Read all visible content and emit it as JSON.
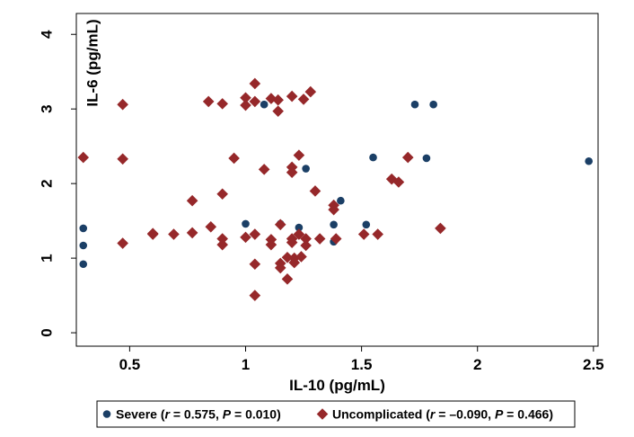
{
  "chart_data": {
    "type": "scatter",
    "title": "",
    "xlabel": "IL-10 (pg/mL)",
    "ylabel": "IL-6 (pg/mL)",
    "xlim": [
      0.27,
      2.52
    ],
    "ylim": [
      -0.18,
      4.28
    ],
    "xticks": [
      0.5,
      1,
      1.5,
      2,
      2.5
    ],
    "yticks": [
      0,
      1,
      2,
      3,
      4
    ],
    "grid": "horizontal",
    "legend_position": "bottom",
    "series": [
      {
        "name": "Severe",
        "stats": {
          "r": "0.575",
          "P": "0.010"
        },
        "color": "#1b3f66",
        "marker": "circle",
        "points": [
          [
            0.3,
            1.4
          ],
          [
            0.3,
            1.17
          ],
          [
            0.3,
            0.92
          ],
          [
            1.0,
            1.46
          ],
          [
            1.08,
            3.06
          ],
          [
            1.15,
            1.46
          ],
          [
            1.23,
            1.41
          ],
          [
            1.26,
            2.2
          ],
          [
            1.38,
            1.45
          ],
          [
            1.38,
            1.22
          ],
          [
            1.41,
            1.77
          ],
          [
            1.52,
            1.45
          ],
          [
            1.55,
            2.35
          ],
          [
            1.73,
            3.06
          ],
          [
            1.78,
            2.34
          ],
          [
            1.81,
            3.06
          ],
          [
            2.48,
            2.3
          ]
        ]
      },
      {
        "name": "Uncomplicated",
        "stats": {
          "r": "–0.090",
          "P": "0.466"
        },
        "color": "#96282a",
        "marker": "diamond",
        "points": [
          [
            0.3,
            2.35
          ],
          [
            0.47,
            3.06
          ],
          [
            0.47,
            2.33
          ],
          [
            0.47,
            1.2
          ],
          [
            0.6,
            1.33
          ],
          [
            0.6,
            1.32
          ],
          [
            0.69,
            1.32
          ],
          [
            0.77,
            1.77
          ],
          [
            0.77,
            1.34
          ],
          [
            0.84,
            3.1
          ],
          [
            0.85,
            1.42
          ],
          [
            0.9,
            3.07
          ],
          [
            0.9,
            1.86
          ],
          [
            0.9,
            1.26
          ],
          [
            0.9,
            1.18
          ],
          [
            0.95,
            2.34
          ],
          [
            1.0,
            3.15
          ],
          [
            1.0,
            3.05
          ],
          [
            1.0,
            1.28
          ],
          [
            1.04,
            3.34
          ],
          [
            1.04,
            3.1
          ],
          [
            1.04,
            1.32
          ],
          [
            1.04,
            0.92
          ],
          [
            1.04,
            0.5
          ],
          [
            1.08,
            2.19
          ],
          [
            1.11,
            3.14
          ],
          [
            1.11,
            1.25
          ],
          [
            1.11,
            1.18
          ],
          [
            1.14,
            3.12
          ],
          [
            1.14,
            2.97
          ],
          [
            1.15,
            1.45
          ],
          [
            1.15,
            0.93
          ],
          [
            1.15,
            0.87
          ],
          [
            1.18,
            1.01
          ],
          [
            1.18,
            0.72
          ],
          [
            1.2,
            3.17
          ],
          [
            1.2,
            2.22
          ],
          [
            1.2,
            2.15
          ],
          [
            1.2,
            1.26
          ],
          [
            1.2,
            1.21
          ],
          [
            1.21,
            1.0
          ],
          [
            1.21,
            0.94
          ],
          [
            1.23,
            2.38
          ],
          [
            1.23,
            1.32
          ],
          [
            1.24,
            1.02
          ],
          [
            1.25,
            3.13
          ],
          [
            1.26,
            1.26
          ],
          [
            1.26,
            1.17
          ],
          [
            1.28,
            3.23
          ],
          [
            1.3,
            1.9
          ],
          [
            1.32,
            1.26
          ],
          [
            1.38,
            1.71
          ],
          [
            1.38,
            1.65
          ],
          [
            1.39,
            1.26
          ],
          [
            1.51,
            1.32
          ],
          [
            1.57,
            1.32
          ],
          [
            1.63,
            2.06
          ],
          [
            1.66,
            2.02
          ],
          [
            1.7,
            2.35
          ],
          [
            1.84,
            1.4
          ]
        ]
      }
    ]
  }
}
